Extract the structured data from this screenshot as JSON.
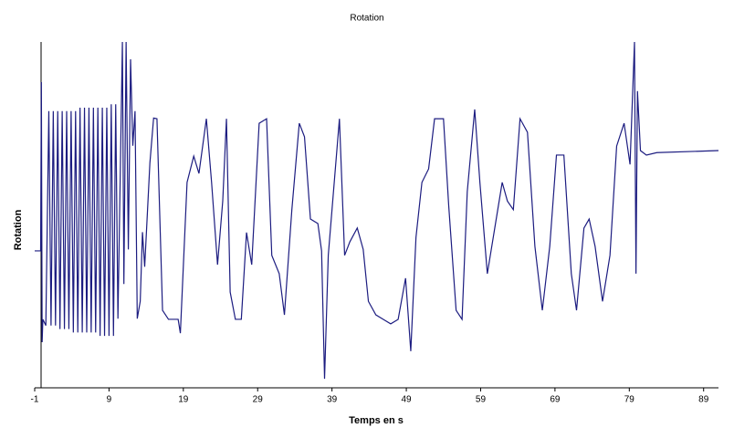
{
  "chart_data": {
    "type": "line",
    "title": "Rotation",
    "x_label": "Temps en s",
    "y_label": "Rotation",
    "color": "#1c1c80",
    "xlim": [
      -1,
      91
    ],
    "ylim": [
      0,
      100
    ],
    "xticks": [
      -1,
      9,
      19,
      29,
      39,
      49,
      59,
      69,
      79,
      89
    ],
    "x": [
      -1,
      -0.2,
      -0.1,
      0,
      0.1,
      0.5,
      0.9,
      1.2,
      1.5,
      1.8,
      2.1,
      2.4,
      2.7,
      3.0,
      3.3,
      3.6,
      3.9,
      4.2,
      4.5,
      4.8,
      5.1,
      5.4,
      5.7,
      6.0,
      6.3,
      6.6,
      6.9,
      7.2,
      7.5,
      7.8,
      8.1,
      8.4,
      8.7,
      9.0,
      9.3,
      9.6,
      9.9,
      10.2,
      10.8,
      11.0,
      11.3,
      11.6,
      11.9,
      12.2,
      12.5,
      12.8,
      13.2,
      13.5,
      13.8,
      14.5,
      15.0,
      15.45,
      16.2,
      17,
      18.3,
      18.6,
      19.5,
      20.4,
      21.1,
      22.1,
      22.8,
      23.6,
      24.3,
      24.8,
      25.3,
      26,
      26.8,
      27.5,
      28.2,
      29.2,
      30.2,
      30.9,
      31.9,
      32.6,
      33.6,
      34.6,
      35.3,
      36.1,
      37.1,
      37.6,
      38.0,
      38.5,
      39.5,
      40,
      40.7,
      41.4,
      42.4,
      43.2,
      43.9,
      44.9,
      45.9,
      46.9,
      47.9,
      48.9,
      49.6,
      50.3,
      51.1,
      52,
      52.8,
      54,
      54.7,
      55.7,
      56.5,
      57.2,
      58.2,
      58.9,
      59.9,
      60.9,
      61.9,
      62.6,
      63.4,
      64.3,
      65.3,
      66.3,
      67.3,
      68.3,
      69.2,
      70.2,
      71.2,
      71.9,
      72.9,
      73.6,
      74.4,
      75.4,
      76.4,
      77.3,
      78.3,
      79.1,
      79.7,
      79.9,
      80.1,
      80.5,
      81.3,
      82.7,
      91
    ],
    "values": [
      39.6,
      39.6,
      88.4,
      13.2,
      19.8,
      18,
      80,
      18,
      80,
      18,
      80,
      17,
      80,
      17,
      80,
      17,
      80,
      16,
      80,
      16,
      81,
      16,
      81,
      16,
      81,
      16,
      81,
      16,
      81,
      15,
      81,
      15,
      81,
      15,
      82,
      15,
      82,
      20,
      100,
      30,
      100,
      40,
      95,
      70,
      80,
      20,
      25,
      45,
      35,
      65,
      78,
      77.8,
      22.4,
      19.8,
      19.8,
      15.8,
      59.4,
      67,
      62,
      77.8,
      59.4,
      35.6,
      54,
      77.8,
      27.7,
      19.8,
      19.8,
      44.9,
      35.6,
      76.5,
      77.8,
      38.3,
      33,
      21.1,
      51.5,
      76.5,
      72.6,
      48.8,
      47.5,
      39.6,
      2.6,
      38.3,
      64.6,
      77.8,
      38.3,
      42.2,
      46.2,
      40,
      25,
      21.1,
      19.8,
      18.5,
      19.8,
      31.7,
      10.6,
      43.5,
      59.4,
      63.3,
      77.8,
      77.8,
      52.8,
      22.4,
      19.8,
      56.7,
      80.5,
      59.4,
      33,
      46.2,
      59.4,
      54,
      51.5,
      77.8,
      73.9,
      40.9,
      22.4,
      40.9,
      67.3,
      67.3,
      33,
      22.4,
      46.2,
      48.8,
      40.9,
      25,
      38.3,
      69.9,
      76.5,
      64.6,
      100,
      33,
      85.8,
      68.6,
      67.3,
      68,
      68.6
    ]
  }
}
